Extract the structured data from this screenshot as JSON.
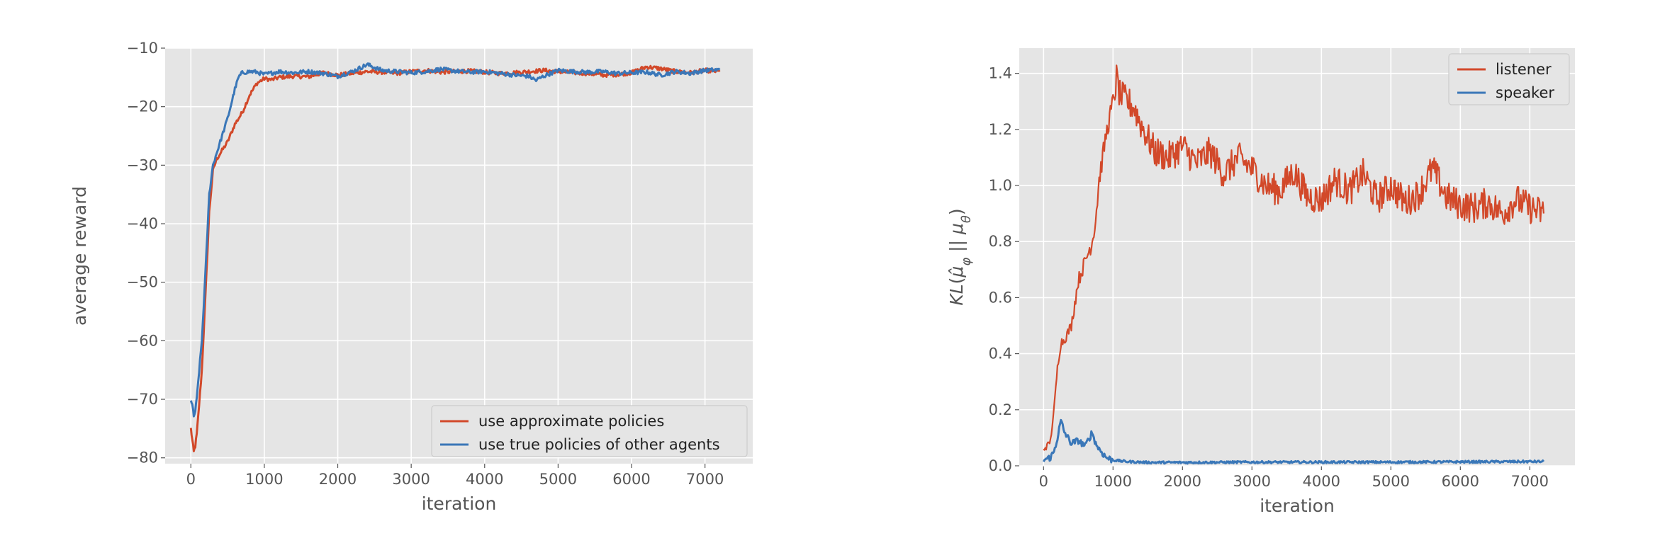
{
  "chart_data": [
    {
      "type": "line",
      "xlabel": "iteration",
      "ylabel": "average reward",
      "xlim": [
        -350,
        7650
      ],
      "ylim": [
        -81,
        -10
      ],
      "x_ticks": [
        0,
        1000,
        2000,
        3000,
        4000,
        5000,
        6000,
        7000
      ],
      "x_tick_labels": [
        "0",
        "1000",
        "2000",
        "3000",
        "4000",
        "5000",
        "6000",
        "7000"
      ],
      "y_ticks": [
        -80,
        -70,
        -60,
        -50,
        -40,
        -30,
        -20,
        -10
      ],
      "y_tick_labels": [
        "−80",
        "−70",
        "−60",
        "−50",
        "−40",
        "−30",
        "−20",
        "−10"
      ],
      "grid": true,
      "legend_position": "lower-right",
      "series": [
        {
          "name": "use approximate policies",
          "color": "#d2492a",
          "x": [
            0,
            20,
            40,
            60,
            80,
            100,
            150,
            200,
            250,
            300,
            350,
            400,
            500,
            600,
            700,
            800,
            900,
            1000,
            1100,
            1200,
            1400,
            1600,
            1800,
            2000,
            2200,
            2400,
            2600,
            2800,
            3000,
            3200,
            3400,
            3600,
            3800,
            4000,
            4200,
            4400,
            4600,
            4800,
            5000,
            5200,
            5400,
            5600,
            5800,
            6000,
            6200,
            6400,
            6600,
            6800,
            7000,
            7200
          ],
          "values": [
            -75,
            -77,
            -79,
            -78,
            -76,
            -73,
            -65,
            -52,
            -38,
            -31,
            -29,
            -28,
            -26,
            -23,
            -21,
            -18,
            -16,
            -15.2,
            -15.4,
            -15,
            -14.8,
            -14.9,
            -14.2,
            -14.6,
            -14.3,
            -14.0,
            -14.1,
            -14.3,
            -14.0,
            -13.8,
            -14.1,
            -14.0,
            -13.9,
            -14.1,
            -14.3,
            -14.2,
            -14.0,
            -13.8,
            -14.0,
            -14.2,
            -14.3,
            -14.6,
            -14.5,
            -14.2,
            -13.2,
            -13.5,
            -14.0,
            -14.2,
            -13.8,
            -14.0
          ]
        },
        {
          "name": "use true policies of other agents",
          "color": "#3a77b8",
          "x": [
            0,
            20,
            40,
            60,
            80,
            100,
            150,
            200,
            250,
            300,
            350,
            400,
            500,
            600,
            650,
            700,
            800,
            900,
            1000,
            1200,
            1400,
            1600,
            1800,
            2000,
            2200,
            2400,
            2600,
            2800,
            3000,
            3200,
            3400,
            3600,
            3800,
            4000,
            4200,
            4400,
            4600,
            4700,
            4800,
            5000,
            5200,
            5400,
            5600,
            5800,
            6000,
            6200,
            6400,
            6600,
            6800,
            7000,
            7200
          ],
          "values": [
            -70,
            -71,
            -73,
            -72,
            -70,
            -67,
            -60,
            -48,
            -35,
            -30,
            -28,
            -26,
            -22,
            -17,
            -15,
            -14.2,
            -14.0,
            -14.1,
            -14.5,
            -14.0,
            -14.2,
            -14.0,
            -14.3,
            -14.8,
            -14.0,
            -12.8,
            -13.8,
            -14.0,
            -14.2,
            -14.0,
            -13.6,
            -13.9,
            -14.1,
            -14.0,
            -14.3,
            -14.6,
            -14.8,
            -15.5,
            -14.8,
            -13.8,
            -14.0,
            -14.1,
            -14.0,
            -14.3,
            -14.2,
            -14.1,
            -14.6,
            -14.0,
            -14.3,
            -13.8,
            -13.7
          ]
        }
      ]
    },
    {
      "type": "line",
      "xlabel": "iteration",
      "ylabel": "KL(μ̂φ || μθ)",
      "xlim": [
        -350,
        7650
      ],
      "ylim": [
        0,
        1.49
      ],
      "x_ticks": [
        0,
        1000,
        2000,
        3000,
        4000,
        5000,
        6000,
        7000
      ],
      "x_tick_labels": [
        "0",
        "1000",
        "2000",
        "3000",
        "4000",
        "5000",
        "6000",
        "7000"
      ],
      "y_ticks": [
        0.0,
        0.2,
        0.4,
        0.6,
        0.8,
        1.0,
        1.2,
        1.4
      ],
      "y_tick_labels": [
        "0.0",
        "0.2",
        "0.4",
        "0.6",
        "0.8",
        "1.0",
        "1.2",
        "1.4"
      ],
      "grid": true,
      "legend_position": "upper-right",
      "series": [
        {
          "name": "listener",
          "color": "#d2492a",
          "x": [
            0,
            50,
            100,
            150,
            200,
            250,
            300,
            400,
            500,
            600,
            700,
            750,
            800,
            900,
            1000,
            1050,
            1100,
            1200,
            1300,
            1400,
            1500,
            1600,
            1800,
            2000,
            2200,
            2400,
            2600,
            2800,
            3000,
            3200,
            3400,
            3600,
            3800,
            4000,
            4200,
            4400,
            4600,
            4800,
            5000,
            5200,
            5400,
            5600,
            5800,
            6000,
            6200,
            6400,
            6600,
            6800,
            7000,
            7200
          ],
          "values": [
            0.06,
            0.07,
            0.09,
            0.2,
            0.35,
            0.44,
            0.45,
            0.5,
            0.66,
            0.73,
            0.8,
            0.88,
            1.02,
            1.18,
            1.3,
            1.38,
            1.32,
            1.3,
            1.28,
            1.22,
            1.17,
            1.12,
            1.1,
            1.14,
            1.08,
            1.12,
            1.04,
            1.1,
            1.06,
            1.0,
            0.98,
            1.05,
            0.96,
            0.95,
            1.02,
            0.98,
            1.04,
            0.95,
            1.0,
            0.94,
            0.97,
            1.06,
            0.96,
            0.93,
            0.92,
            0.94,
            0.9,
            0.95,
            0.92,
            0.9
          ]
        },
        {
          "name": "speaker",
          "color": "#3a77b8",
          "x": [
            0,
            100,
            150,
            200,
            250,
            300,
            400,
            500,
            600,
            700,
            750,
            800,
            900,
            1000,
            1200,
            1500,
            2000,
            3000,
            4000,
            5000,
            6000,
            7000,
            7200
          ],
          "values": [
            0.02,
            0.03,
            0.05,
            0.1,
            0.16,
            0.12,
            0.08,
            0.09,
            0.07,
            0.12,
            0.08,
            0.06,
            0.03,
            0.02,
            0.015,
            0.012,
            0.012,
            0.013,
            0.013,
            0.013,
            0.014,
            0.015,
            0.015
          ]
        }
      ]
    }
  ]
}
